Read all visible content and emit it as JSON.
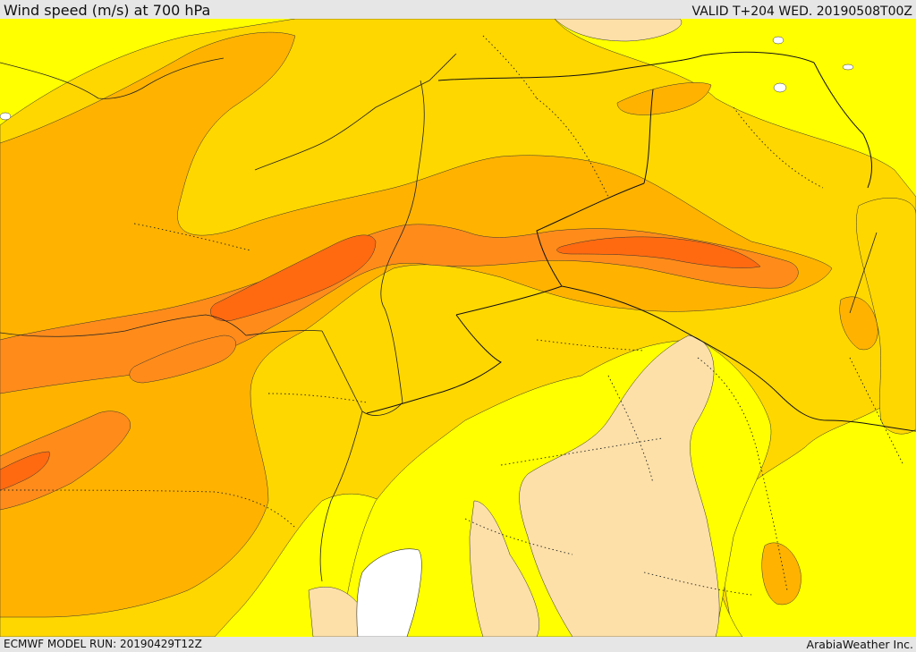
{
  "header": {
    "title": "Wind speed (m/s) at 700 hPa",
    "valid": "VALID T+204 WED. 20190508T00Z"
  },
  "footer": {
    "model_run": "ECMWF MODEL RUN: 20190429T12Z",
    "credit": "ArabiaWeather Inc."
  },
  "palette": {
    "lightest": "#fde0a8",
    "yellow": "#ffff00",
    "gold": "#ffd700",
    "amber": "#ffb300",
    "orange": "#ff8c1a",
    "deep_orange": "#ff6a10",
    "water": "#ffffff"
  }
}
